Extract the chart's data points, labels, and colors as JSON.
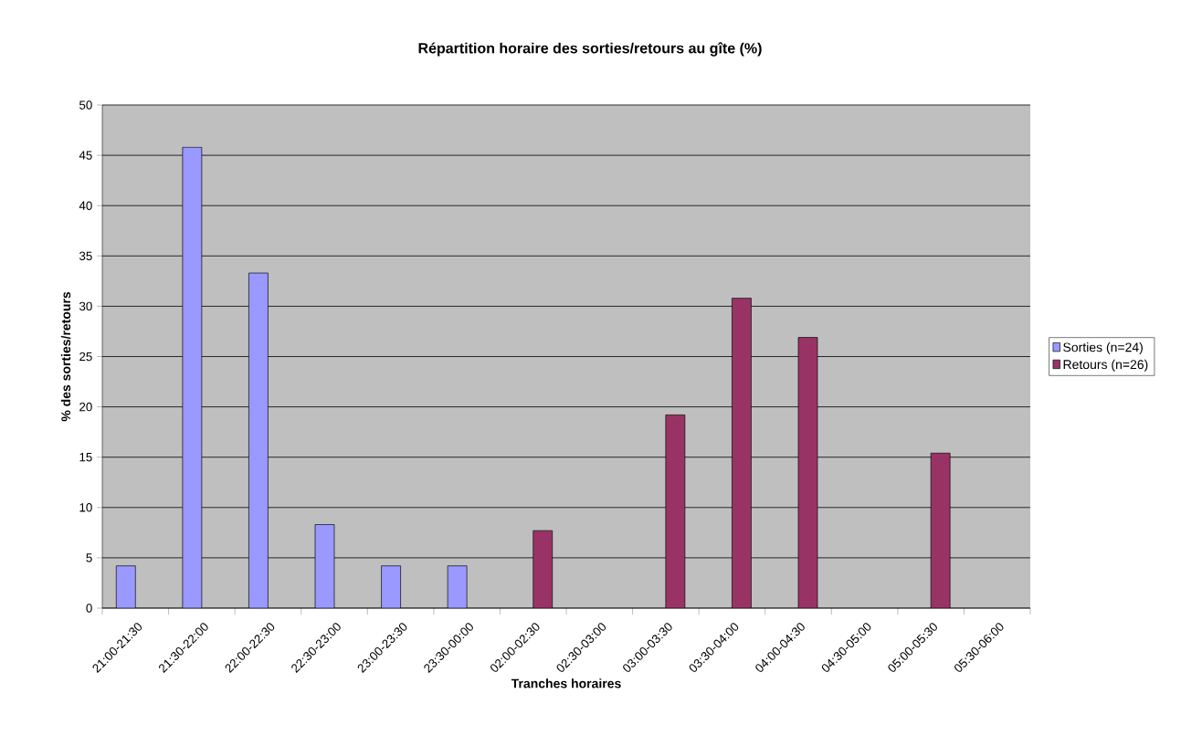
{
  "chart_data": {
    "type": "bar",
    "title": "Répartition horaire des sorties/retours au gîte (%)",
    "xlabel": "Tranches horaires",
    "ylabel": "% des sorties/retours",
    "categories": [
      "21:00-21:30",
      "21:30-22:00",
      "22:00-22:30",
      "22:30-23:00",
      "23:00-23:30",
      "23:30-00:00",
      "02:00-02:30",
      "02:30-03:00",
      "03:00-03:30",
      "03:30-04:00",
      "04:00-04:30",
      "04:30-05:00",
      "05:00-05:30",
      "05:30-06:00"
    ],
    "series": [
      {
        "name": "Sorties (n=24)",
        "color": "#9999ff",
        "values": [
          4.2,
          45.8,
          33.3,
          8.3,
          4.2,
          4.2,
          null,
          null,
          null,
          null,
          null,
          null,
          null,
          null
        ]
      },
      {
        "name": "Retours (n=26)",
        "color": "#993366",
        "values": [
          null,
          null,
          null,
          null,
          null,
          null,
          7.7,
          null,
          19.2,
          30.8,
          26.9,
          null,
          15.4,
          null
        ]
      }
    ],
    "ylim": [
      0,
      50
    ],
    "yticks": [
      0,
      5,
      10,
      15,
      20,
      25,
      30,
      35,
      40,
      45,
      50
    ],
    "grid": "y",
    "legend": "right"
  }
}
